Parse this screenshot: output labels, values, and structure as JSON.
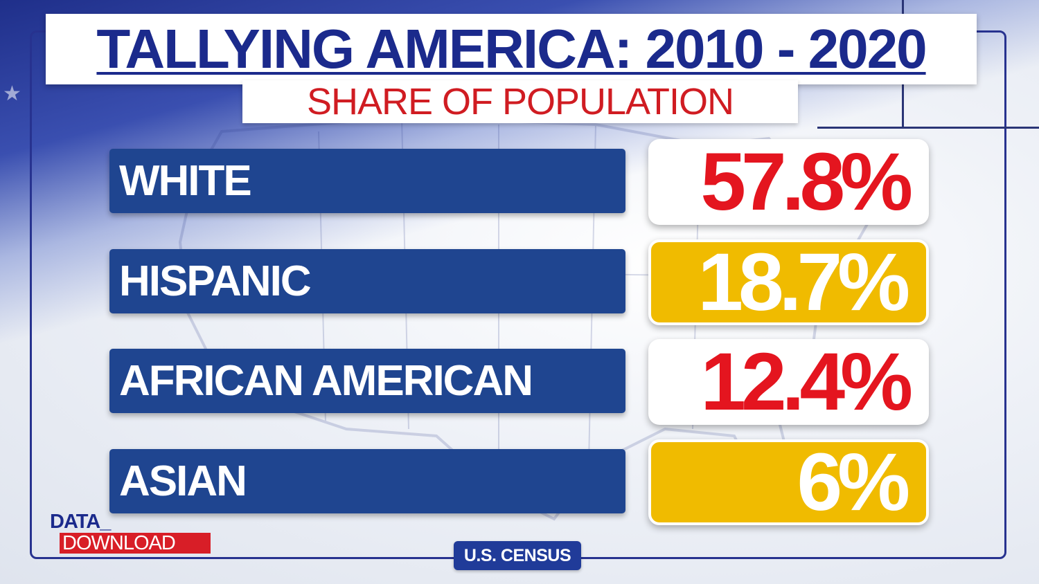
{
  "header": {
    "title": "TALLYING AMERICA: 2010 - 2020",
    "subtitle": "SHARE OF POPULATION"
  },
  "chart_data": {
    "type": "table",
    "title": "TALLYING AMERICA: 2010 - 2020",
    "subtitle": "SHARE OF POPULATION",
    "categories": [
      "WHITE",
      "HISPANIC",
      "AFRICAN AMERICAN",
      "ASIAN"
    ],
    "values": [
      57.8,
      18.7,
      12.4,
      6
    ],
    "value_labels": [
      "57.8%",
      "18.7%",
      "12.4%",
      "6%"
    ],
    "unit": "%"
  },
  "rows": [
    {
      "label": "WHITE",
      "value": "57.8%",
      "style": "white"
    },
    {
      "label": "HISPANIC",
      "value": "18.7%",
      "style": "gold"
    },
    {
      "label": "AFRICAN AMERICAN",
      "value": "12.4%",
      "style": "white"
    },
    {
      "label": "ASIAN",
      "value": "6%",
      "style": "gold"
    }
  ],
  "colors": {
    "title": "#1b2a8c",
    "subtitle": "#d01c22",
    "label_bar": "#1f4590",
    "value_red": "#e4151f",
    "value_gold": "#f0bb00"
  },
  "logo": {
    "line1": "DATA_",
    "line2": "DOWNLOAD"
  },
  "source": "U.S. CENSUS",
  "icons": {
    "star": "star-icon",
    "map": "us-map-icon"
  }
}
